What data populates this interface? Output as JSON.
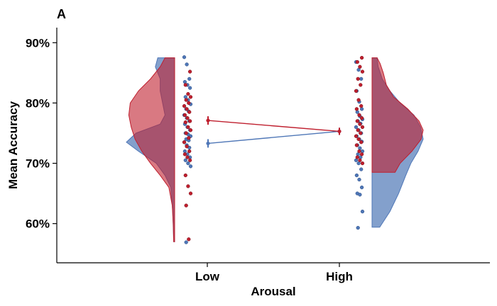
{
  "chart_data": {
    "type": "raincloud",
    "panel_label": "A",
    "xlabel": "Arousal",
    "ylabel": "Mean Accuracy",
    "categories": [
      "Low",
      "High"
    ],
    "y_ticks": [
      "60%",
      "70%",
      "80%",
      "90%"
    ],
    "y_tick_values": [
      60,
      70,
      80,
      90
    ],
    "ylim": [
      53.5,
      92.5
    ],
    "colors": {
      "blue": "#4f77b7",
      "red": "#bf1f2e",
      "overlap": "#8b3552"
    },
    "series": [
      {
        "color": "#4f77b7",
        "means": [
          73.3,
          75.3
        ],
        "errors": [
          0.7,
          0.6
        ],
        "points": {
          "Low": [
            87.6,
            86.4,
            84.0,
            83.5,
            83.0,
            82.5,
            81.0,
            80.5,
            79.8,
            79.0,
            78.6,
            78.0,
            77.5,
            77.0,
            76.5,
            76.0,
            75.5,
            75.0,
            74.8,
            74.5,
            74.0,
            73.8,
            73.5,
            73.0,
            72.6,
            72.0,
            71.5,
            71.0,
            70.5,
            70.0,
            69.5,
            56.9
          ],
          "High": [
            86.8,
            85.5,
            84.0,
            82.0,
            80.2,
            79.0,
            78.5,
            77.8,
            77.3,
            77.0,
            76.6,
            76.0,
            75.5,
            75.0,
            74.5,
            74.0,
            73.6,
            73.0,
            72.5,
            72.0,
            71.5,
            71.0,
            70.5,
            70.0,
            69.0,
            68.0,
            67.3,
            66.0,
            65.0,
            64.8,
            62.0,
            59.3
          ]
        },
        "density": {
          "Low": [
            [
              57,
              0.02
            ],
            [
              62,
              0.04
            ],
            [
              66,
              0.08
            ],
            [
              68,
              0.2
            ],
            [
              70,
              0.38
            ],
            [
              72,
              0.75
            ],
            [
              73.5,
              1.0
            ],
            [
              75,
              0.8
            ],
            [
              76.5,
              0.3
            ],
            [
              78,
              0.2
            ],
            [
              80,
              0.25
            ],
            [
              82,
              0.3
            ],
            [
              84,
              0.3
            ],
            [
              86,
              0.4
            ],
            [
              87.5,
              0.35
            ]
          ],
          "High": [
            [
              59.4,
              0.15
            ],
            [
              62,
              0.35
            ],
            [
              65,
              0.52
            ],
            [
              68,
              0.66
            ],
            [
              70,
              0.76
            ],
            [
              72,
              0.9
            ],
            [
              74,
              1.0
            ],
            [
              76,
              0.95
            ],
            [
              78,
              0.82
            ],
            [
              80,
              0.55
            ],
            [
              82,
              0.35
            ],
            [
              84,
              0.2
            ],
            [
              86,
              0.12
            ],
            [
              87.5,
              0.1
            ]
          ]
        }
      },
      {
        "color": "#bf1f2e",
        "means": [
          77.1,
          75.3
        ],
        "errors": [
          0.7,
          0.6
        ],
        "points": {
          "Low": [
            85.2,
            83.0,
            81.5,
            81.0,
            80.5,
            80.0,
            79.5,
            79.0,
            78.5,
            78.0,
            77.5,
            77.0,
            76.8,
            76.0,
            75.5,
            75.0,
            74.2,
            73.5,
            72.8,
            72.0,
            71.5,
            71.0,
            70.5,
            68.0,
            66.2,
            65.0,
            63.0,
            57.4
          ],
          "High": [
            87.5,
            86.8,
            86.0,
            85.2,
            84.0,
            83.0,
            82.0,
            80.5,
            79.5,
            79.0,
            78.0,
            77.5,
            77.0,
            76.5,
            76.0,
            75.5,
            75.0,
            74.5,
            74.0,
            73.5,
            73.0,
            72.0,
            71.5,
            71.0,
            70.5,
            70.0
          ]
        },
        "density": {
          "Low": [
            [
              57,
              0.02
            ],
            [
              60,
              0.03
            ],
            [
              63,
              0.05
            ],
            [
              66,
              0.12
            ],
            [
              68,
              0.3
            ],
            [
              70,
              0.5
            ],
            [
              72,
              0.68
            ],
            [
              74,
              0.82
            ],
            [
              76,
              0.9
            ],
            [
              78,
              0.95
            ],
            [
              80,
              0.92
            ],
            [
              82,
              0.75
            ],
            [
              84,
              0.5
            ],
            [
              86,
              0.3
            ],
            [
              87.5,
              0.2
            ]
          ],
          "High": [
            [
              68.5,
              0.45
            ],
            [
              70,
              0.55
            ],
            [
              72,
              0.78
            ],
            [
              74,
              0.96
            ],
            [
              75.5,
              1.0
            ],
            [
              77,
              0.92
            ],
            [
              79,
              0.7
            ],
            [
              81,
              0.42
            ],
            [
              83,
              0.28
            ],
            [
              85,
              0.22
            ],
            [
              86.5,
              0.16
            ],
            [
              87.5,
              0.1
            ]
          ]
        }
      }
    ]
  }
}
